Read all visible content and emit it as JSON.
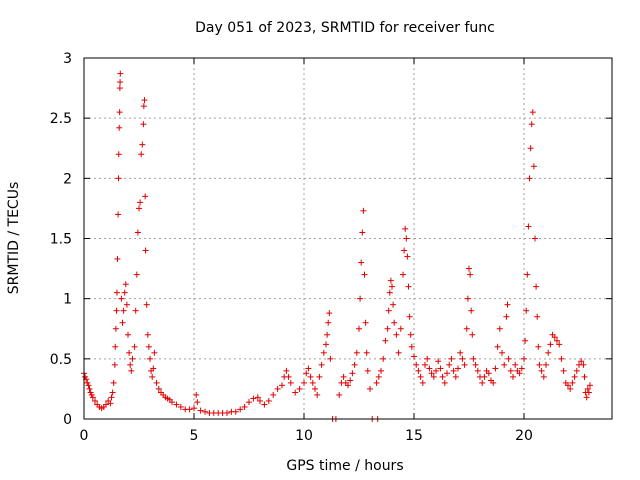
{
  "chart_data": {
    "type": "scatter",
    "title": "Day 051 of 2023, SRMTID for receiver func",
    "xlabel": "GPS time / hours",
    "ylabel": "SRMTID / TECUs",
    "xlim": [
      0,
      24
    ],
    "ylim": [
      0,
      3
    ],
    "xticks": [
      0,
      5,
      10,
      15,
      20
    ],
    "xtick_labels": [
      "0",
      "5",
      "10",
      "15",
      "20"
    ],
    "yticks": [
      0,
      0.5,
      1,
      1.5,
      2,
      2.5,
      3
    ],
    "ytick_labels": [
      "0",
      "0.5",
      "1",
      "1.5",
      "2",
      "2.5",
      "3"
    ],
    "grid": true,
    "marker": "+",
    "color": "#e00000",
    "series": [
      {
        "name": "SRMTID",
        "points": [
          [
            0.0,
            0.38
          ],
          [
            0.05,
            0.35
          ],
          [
            0.1,
            0.33
          ],
          [
            0.15,
            0.3
          ],
          [
            0.2,
            0.28
          ],
          [
            0.25,
            0.25
          ],
          [
            0.3,
            0.22
          ],
          [
            0.35,
            0.2
          ],
          [
            0.4,
            0.18
          ],
          [
            0.5,
            0.15
          ],
          [
            0.6,
            0.12
          ],
          [
            0.7,
            0.1
          ],
          [
            0.8,
            0.09
          ],
          [
            0.9,
            0.1
          ],
          [
            1.0,
            0.12
          ],
          [
            1.1,
            0.15
          ],
          [
            1.2,
            0.13
          ],
          [
            1.25,
            0.18
          ],
          [
            1.3,
            0.22
          ],
          [
            1.35,
            0.3
          ],
          [
            1.4,
            0.45
          ],
          [
            1.42,
            0.6
          ],
          [
            1.45,
            0.75
          ],
          [
            1.48,
            0.9
          ],
          [
            1.5,
            1.05
          ],
          [
            1.52,
            1.33
          ],
          [
            1.55,
            1.7
          ],
          [
            1.57,
            2.0
          ],
          [
            1.58,
            2.2
          ],
          [
            1.6,
            2.42
          ],
          [
            1.62,
            2.55
          ],
          [
            1.63,
            2.75
          ],
          [
            1.64,
            2.8
          ],
          [
            1.65,
            2.87
          ],
          [
            1.7,
            1.0
          ],
          [
            1.75,
            0.8
          ],
          [
            1.8,
            0.9
          ],
          [
            1.85,
            1.05
          ],
          [
            1.9,
            1.12
          ],
          [
            1.95,
            0.95
          ],
          [
            2.0,
            0.7
          ],
          [
            2.05,
            0.55
          ],
          [
            2.1,
            0.45
          ],
          [
            2.15,
            0.4
          ],
          [
            2.2,
            0.5
          ],
          [
            2.3,
            0.6
          ],
          [
            2.35,
            0.9
          ],
          [
            2.4,
            1.2
          ],
          [
            2.45,
            1.55
          ],
          [
            2.5,
            1.75
          ],
          [
            2.55,
            1.8
          ],
          [
            2.6,
            2.2
          ],
          [
            2.65,
            2.28
          ],
          [
            2.7,
            2.45
          ],
          [
            2.72,
            2.6
          ],
          [
            2.75,
            2.65
          ],
          [
            2.78,
            1.85
          ],
          [
            2.8,
            1.4
          ],
          [
            2.85,
            0.95
          ],
          [
            2.9,
            0.7
          ],
          [
            2.95,
            0.6
          ],
          [
            3.0,
            0.5
          ],
          [
            3.05,
            0.4
          ],
          [
            3.1,
            0.35
          ],
          [
            3.15,
            0.42
          ],
          [
            3.2,
            0.55
          ],
          [
            3.3,
            0.3
          ],
          [
            3.4,
            0.25
          ],
          [
            3.5,
            0.22
          ],
          [
            3.6,
            0.2
          ],
          [
            3.7,
            0.18
          ],
          [
            3.8,
            0.17
          ],
          [
            3.9,
            0.16
          ],
          [
            4.0,
            0.14
          ],
          [
            4.2,
            0.12
          ],
          [
            4.4,
            0.1
          ],
          [
            4.6,
            0.08
          ],
          [
            4.8,
            0.08
          ],
          [
            5.0,
            0.09
          ],
          [
            5.1,
            0.2
          ],
          [
            5.15,
            0.14
          ],
          [
            5.3,
            0.07
          ],
          [
            5.5,
            0.06
          ],
          [
            5.7,
            0.05
          ],
          [
            5.9,
            0.05
          ],
          [
            6.1,
            0.05
          ],
          [
            6.3,
            0.05
          ],
          [
            6.5,
            0.05
          ],
          [
            6.7,
            0.06
          ],
          [
            6.9,
            0.06
          ],
          [
            7.1,
            0.08
          ],
          [
            7.3,
            0.1
          ],
          [
            7.5,
            0.14
          ],
          [
            7.7,
            0.17
          ],
          [
            7.9,
            0.18
          ],
          [
            8.0,
            0.15
          ],
          [
            8.2,
            0.12
          ],
          [
            8.4,
            0.15
          ],
          [
            8.6,
            0.2
          ],
          [
            8.8,
            0.25
          ],
          [
            9.0,
            0.28
          ],
          [
            9.1,
            0.35
          ],
          [
            9.2,
            0.4
          ],
          [
            9.3,
            0.35
          ],
          [
            9.4,
            0.3
          ],
          [
            9.6,
            0.22
          ],
          [
            9.8,
            0.25
          ],
          [
            10.0,
            0.3
          ],
          [
            10.1,
            0.38
          ],
          [
            10.2,
            0.42
          ],
          [
            10.3,
            0.35
          ],
          [
            10.4,
            0.3
          ],
          [
            10.5,
            0.25
          ],
          [
            10.6,
            0.2
          ],
          [
            10.7,
            0.35
          ],
          [
            10.8,
            0.45
          ],
          [
            10.9,
            0.55
          ],
          [
            11.0,
            0.62
          ],
          [
            11.05,
            0.7
          ],
          [
            11.1,
            0.8
          ],
          [
            11.15,
            0.88
          ],
          [
            11.2,
            0.5
          ],
          [
            11.3,
            0.0
          ],
          [
            11.45,
            0.0
          ],
          [
            11.6,
            0.2
          ],
          [
            11.7,
            0.3
          ],
          [
            11.8,
            0.35
          ],
          [
            11.9,
            0.3
          ],
          [
            12.0,
            0.28
          ],
          [
            12.1,
            0.32
          ],
          [
            12.2,
            0.38
          ],
          [
            12.3,
            0.45
          ],
          [
            12.4,
            0.55
          ],
          [
            12.5,
            0.75
          ],
          [
            12.55,
            1.0
          ],
          [
            12.6,
            1.3
          ],
          [
            12.65,
            1.55
          ],
          [
            12.7,
            1.73
          ],
          [
            12.75,
            1.2
          ],
          [
            12.8,
            0.8
          ],
          [
            12.85,
            0.55
          ],
          [
            12.9,
            0.4
          ],
          [
            13.0,
            0.25
          ],
          [
            13.1,
            0.0
          ],
          [
            13.3,
            0.3
          ],
          [
            13.35,
            0.0
          ],
          [
            13.4,
            0.35
          ],
          [
            13.5,
            0.4
          ],
          [
            13.6,
            0.5
          ],
          [
            13.7,
            0.65
          ],
          [
            13.8,
            0.75
          ],
          [
            13.85,
            0.9
          ],
          [
            13.9,
            1.05
          ],
          [
            13.95,
            1.15
          ],
          [
            14.0,
            1.1
          ],
          [
            14.05,
            0.95
          ],
          [
            14.1,
            0.8
          ],
          [
            14.2,
            0.7
          ],
          [
            14.3,
            0.55
          ],
          [
            14.4,
            0.75
          ],
          [
            14.5,
            1.2
          ],
          [
            14.55,
            1.4
          ],
          [
            14.6,
            1.58
          ],
          [
            14.65,
            1.5
          ],
          [
            14.7,
            1.35
          ],
          [
            14.75,
            1.1
          ],
          [
            14.8,
            0.85
          ],
          [
            14.85,
            0.7
          ],
          [
            14.9,
            0.6
          ],
          [
            15.0,
            0.52
          ],
          [
            15.1,
            0.45
          ],
          [
            15.2,
            0.4
          ],
          [
            15.3,
            0.35
          ],
          [
            15.4,
            0.3
          ],
          [
            15.5,
            0.45
          ],
          [
            15.6,
            0.5
          ],
          [
            15.7,
            0.42
          ],
          [
            15.8,
            0.38
          ],
          [
            15.9,
            0.35
          ],
          [
            16.0,
            0.4
          ],
          [
            16.1,
            0.48
          ],
          [
            16.2,
            0.42
          ],
          [
            16.3,
            0.35
          ],
          [
            16.4,
            0.3
          ],
          [
            16.5,
            0.38
          ],
          [
            16.6,
            0.45
          ],
          [
            16.7,
            0.5
          ],
          [
            16.8,
            0.4
          ],
          [
            16.9,
            0.35
          ],
          [
            17.0,
            0.42
          ],
          [
            17.1,
            0.55
          ],
          [
            17.2,
            0.5
          ],
          [
            17.3,
            0.45
          ],
          [
            17.4,
            0.75
          ],
          [
            17.45,
            1.0
          ],
          [
            17.5,
            1.25
          ],
          [
            17.55,
            1.2
          ],
          [
            17.6,
            0.9
          ],
          [
            17.65,
            0.7
          ],
          [
            17.7,
            0.5
          ],
          [
            17.8,
            0.45
          ],
          [
            17.9,
            0.4
          ],
          [
            18.0,
            0.35
          ],
          [
            18.1,
            0.3
          ],
          [
            18.2,
            0.35
          ],
          [
            18.3,
            0.4
          ],
          [
            18.4,
            0.38
          ],
          [
            18.5,
            0.32
          ],
          [
            18.6,
            0.3
          ],
          [
            18.7,
            0.42
          ],
          [
            18.8,
            0.6
          ],
          [
            18.9,
            0.75
          ],
          [
            19.0,
            0.55
          ],
          [
            19.1,
            0.45
          ],
          [
            19.2,
            0.85
          ],
          [
            19.25,
            0.95
          ],
          [
            19.3,
            0.5
          ],
          [
            19.4,
            0.4
          ],
          [
            19.5,
            0.35
          ],
          [
            19.6,
            0.45
          ],
          [
            19.7,
            0.4
          ],
          [
            19.8,
            0.38
          ],
          [
            19.9,
            0.42
          ],
          [
            20.0,
            0.5
          ],
          [
            20.05,
            0.65
          ],
          [
            20.1,
            0.9
          ],
          [
            20.15,
            1.2
          ],
          [
            20.2,
            1.6
          ],
          [
            20.25,
            2.0
          ],
          [
            20.3,
            2.25
          ],
          [
            20.35,
            2.45
          ],
          [
            20.4,
            2.55
          ],
          [
            20.45,
            2.1
          ],
          [
            20.5,
            1.5
          ],
          [
            20.55,
            1.1
          ],
          [
            20.6,
            0.85
          ],
          [
            20.65,
            0.6
          ],
          [
            20.7,
            0.45
          ],
          [
            20.8,
            0.4
          ],
          [
            20.9,
            0.35
          ],
          [
            21.0,
            0.45
          ],
          [
            21.1,
            0.55
          ],
          [
            21.2,
            0.62
          ],
          [
            21.3,
            0.7
          ],
          [
            21.4,
            0.68
          ],
          [
            21.5,
            0.65
          ],
          [
            21.6,
            0.62
          ],
          [
            21.7,
            0.5
          ],
          [
            21.8,
            0.4
          ],
          [
            21.9,
            0.3
          ],
          [
            22.0,
            0.28
          ],
          [
            22.1,
            0.25
          ],
          [
            22.2,
            0.3
          ],
          [
            22.3,
            0.35
          ],
          [
            22.4,
            0.4
          ],
          [
            22.5,
            0.45
          ],
          [
            22.6,
            0.48
          ],
          [
            22.7,
            0.45
          ],
          [
            22.75,
            0.35
          ],
          [
            22.8,
            0.22
          ],
          [
            22.85,
            0.18
          ],
          [
            22.9,
            0.25
          ],
          [
            22.95,
            0.22
          ],
          [
            23.0,
            0.28
          ]
        ]
      }
    ]
  }
}
